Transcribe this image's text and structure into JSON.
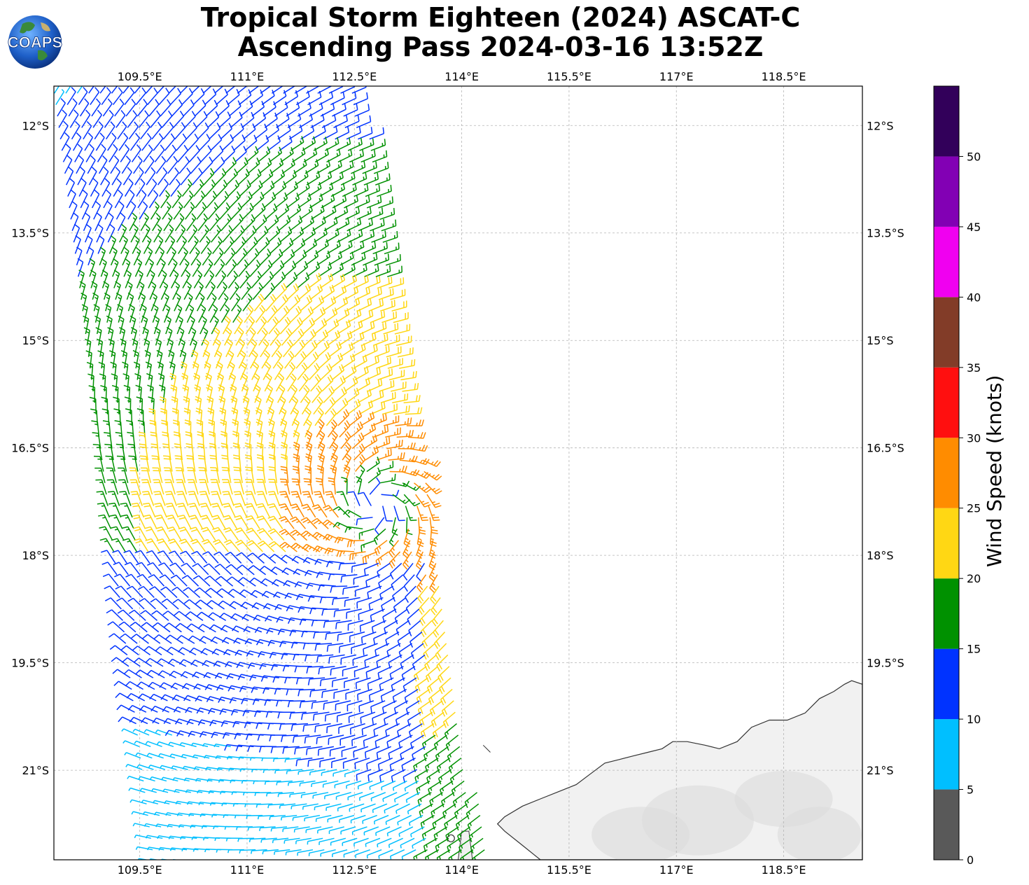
{
  "header": {
    "title_line1": "Tropical Storm Eighteen (2024) ASCAT-C",
    "title_line2": "Ascending Pass 2024-03-16 13:52Z",
    "logo_text": "COAPS"
  },
  "map": {
    "lon_range": [
      108.3,
      119.6
    ],
    "lat_range": [
      -22.25,
      -11.45
    ],
    "lon_ticks": [
      109.5,
      111,
      112.5,
      114,
      115.5,
      117,
      118.5
    ],
    "lon_tick_labels": [
      "109.5°E",
      "111°E",
      "112.5°E",
      "114°E",
      "115.5°E",
      "117°E",
      "118.5°E"
    ],
    "lat_ticks": [
      -12,
      -13.5,
      -15,
      -16.5,
      -18,
      -19.5,
      -21
    ],
    "lat_tick_labels": [
      "12°S",
      "13.5°S",
      "15°S",
      "16.5°S",
      "18°S",
      "19.5°S",
      "21°S"
    ],
    "gridlines": true,
    "land": "Western Australia coast (Pilbara), bottom-right",
    "storm_center_approx": {
      "lon": 112.8,
      "lat": -17.3
    }
  },
  "colorbar": {
    "title": "Wind Speed (knots)",
    "tick_labels": [
      "0",
      "5",
      "10",
      "15",
      "20",
      "25",
      "30",
      "35",
      "40",
      "45",
      "50"
    ],
    "bins": [
      {
        "min": 0,
        "max": 5,
        "color": "#595959"
      },
      {
        "min": 5,
        "max": 10,
        "color": "#00bfff"
      },
      {
        "min": 10,
        "max": 15,
        "color": "#0033ff"
      },
      {
        "min": 15,
        "max": 20,
        "color": "#009100"
      },
      {
        "min": 20,
        "max": 25,
        "color": "#ffd714"
      },
      {
        "min": 25,
        "max": 30,
        "color": "#ff8c00"
      },
      {
        "min": 30,
        "max": 35,
        "color": "#ff0f0f"
      },
      {
        "min": 35,
        "max": 40,
        "color": "#823c28"
      },
      {
        "min": 40,
        "max": 45,
        "color": "#f000f0"
      },
      {
        "min": 45,
        "max": 50,
        "color": "#8200b4"
      },
      {
        "min": 50,
        "max": 55,
        "color": "#32005a"
      }
    ]
  }
}
